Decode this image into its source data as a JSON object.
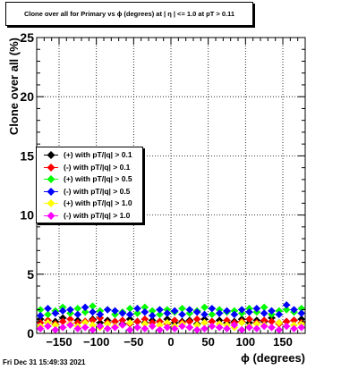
{
  "title": "Clone  over all for Primary vs ϕ (degrees) at |  η | <= 1.0 at pT > 0.11",
  "timestamp": "Fri Dec 31 15:49:33 2021",
  "chart_data": {
    "type": "scatter",
    "xlabel": "ϕ (degrees)",
    "ylabel": "Clone  over all (%)",
    "xlim": [
      -180,
      180
    ],
    "ylim": [
      0,
      25
    ],
    "x_ticks": [
      {
        "value": -150,
        "label": "−150"
      },
      {
        "value": -100,
        "label": "−100"
      },
      {
        "value": -50,
        "label": "−50"
      },
      {
        "value": 0,
        "label": "0"
      },
      {
        "value": 50,
        "label": "50"
      },
      {
        "value": 100,
        "label": "100"
      },
      {
        "value": 150,
        "label": "150"
      }
    ],
    "y_ticks": [
      {
        "value": 0,
        "label": "0"
      },
      {
        "value": 5,
        "label": "5"
      },
      {
        "value": 10,
        "label": "10"
      },
      {
        "value": 15,
        "label": "15"
      },
      {
        "value": 20,
        "label": "20"
      },
      {
        "value": 25,
        "label": "25"
      }
    ],
    "grid": true,
    "legend_position": "left-middle",
    "series": [
      {
        "name": "(+) with pT/|q| > 0.1",
        "color": "#000000",
        "x": [
          -175,
          -165,
          -155,
          -145,
          -135,
          -125,
          -115,
          -105,
          -95,
          -85,
          -75,
          -65,
          -55,
          -45,
          -35,
          -25,
          -15,
          -5,
          5,
          15,
          25,
          35,
          45,
          55,
          65,
          75,
          85,
          95,
          105,
          115,
          125,
          135,
          145,
          155,
          165,
          175
        ],
        "y": [
          1.2,
          0.9,
          1.0,
          1.3,
          0.8,
          1.1,
          1.0,
          1.2,
          0.9,
          1.1,
          1.0,
          0.8,
          1.2,
          1.0,
          0.9,
          1.1,
          1.0,
          1.2,
          0.9,
          1.0,
          1.1,
          0.8,
          1.2,
          1.0,
          1.1,
          0.9,
          1.0,
          1.2,
          0.9,
          1.1,
          1.0,
          1.3,
          0.9,
          1.0,
          1.1,
          1.2
        ]
      },
      {
        "name": "(-) with pT/|q| > 0.1",
        "color": "#ff0000",
        "x": [
          -175,
          -165,
          -155,
          -145,
          -135,
          -125,
          -115,
          -105,
          -95,
          -85,
          -75,
          -65,
          -55,
          -45,
          -35,
          -25,
          -15,
          -5,
          5,
          15,
          25,
          35,
          45,
          55,
          65,
          75,
          85,
          95,
          105,
          115,
          125,
          135,
          145,
          155,
          165,
          175
        ],
        "y": [
          0.9,
          1.1,
          0.8,
          1.0,
          1.2,
          0.9,
          1.0,
          1.1,
          1.3,
          0.9,
          1.0,
          1.1,
          0.8,
          1.0,
          1.2,
          0.9,
          1.0,
          0.8,
          1.1,
          0.9,
          1.0,
          1.2,
          0.9,
          1.0,
          0.8,
          1.1,
          0.9,
          1.0,
          1.2,
          0.9,
          1.1,
          1.0,
          0.8,
          1.0,
          1.1,
          0.9
        ]
      },
      {
        "name": "(+) with pT/|q| > 0.5",
        "color": "#00ff00",
        "x": [
          -175,
          -165,
          -155,
          -145,
          -135,
          -125,
          -115,
          -105,
          -95,
          -85,
          -75,
          -65,
          -55,
          -45,
          -35,
          -25,
          -15,
          -5,
          5,
          15,
          25,
          35,
          45,
          55,
          65,
          75,
          85,
          95,
          105,
          115,
          125,
          135,
          145,
          155,
          165,
          175
        ],
        "y": [
          2.0,
          1.6,
          1.9,
          2.2,
          1.7,
          2.1,
          1.8,
          2.3,
          1.9,
          2.0,
          1.6,
          1.8,
          2.1,
          1.7,
          2.2,
          1.9,
          1.6,
          2.0,
          1.8,
          2.1,
          1.7,
          1.9,
          2.2,
          1.6,
          2.0,
          1.8,
          1.9,
          1.7,
          2.1,
          1.8,
          2.2,
          1.6,
          1.9,
          2.0,
          1.8,
          2.1
        ]
      },
      {
        "name": "(-) with pT/|q| > 0.5",
        "color": "#0000ff",
        "x": [
          -175,
          -165,
          -155,
          -145,
          -135,
          -125,
          -115,
          -105,
          -95,
          -85,
          -75,
          -65,
          -55,
          -45,
          -35,
          -25,
          -15,
          -5,
          5,
          15,
          25,
          35,
          45,
          55,
          65,
          75,
          85,
          95,
          105,
          115,
          125,
          135,
          145,
          155,
          165,
          175
        ],
        "y": [
          1.5,
          2.1,
          1.7,
          1.9,
          2.0,
          1.6,
          2.2,
          1.8,
          1.6,
          2.0,
          1.9,
          1.7,
          1.6,
          2.1,
          1.8,
          1.5,
          2.0,
          1.7,
          1.9,
          1.6,
          2.0,
          1.8,
          1.6,
          2.1,
          1.7,
          1.9,
          1.6,
          2.0,
          1.8,
          2.1,
          1.7,
          1.9,
          1.6,
          2.4,
          2.0,
          1.7
        ]
      },
      {
        "name": "(+) with pT/|q| > 1.0",
        "color": "#ffff00",
        "x": [
          -175,
          -165,
          -155,
          -145,
          -135,
          -125,
          -115,
          -105,
          -95,
          -85,
          -75,
          -65,
          -55,
          -45,
          -35,
          -25,
          -15,
          -5,
          5,
          15,
          25,
          35,
          45,
          55,
          65,
          75,
          85,
          95,
          105,
          115,
          125,
          135,
          145,
          155,
          165,
          175
        ],
        "y": [
          0.6,
          0.9,
          0.7,
          0.5,
          0.8,
          0.6,
          0.9,
          0.7,
          0.5,
          0.8,
          0.6,
          0.7,
          0.9,
          0.5,
          0.8,
          0.6,
          0.7,
          0.9,
          0.6,
          0.8,
          0.5,
          0.7,
          0.9,
          0.6,
          0.8,
          0.7,
          0.5,
          0.9,
          0.6,
          0.8,
          0.7,
          0.5,
          0.9,
          0.6,
          0.7,
          0.8
        ]
      },
      {
        "name": "(-) with pT/|q| > 1.0",
        "color": "#ff00ff",
        "x": [
          -175,
          -165,
          -155,
          -145,
          -135,
          -125,
          -115,
          -105,
          -95,
          -85,
          -75,
          -65,
          -55,
          -45,
          -35,
          -25,
          -15,
          -5,
          5,
          15,
          25,
          35,
          45,
          55,
          65,
          75,
          85,
          95,
          105,
          115,
          125,
          135,
          145,
          155,
          165,
          175
        ],
        "y": [
          0.4,
          0.6,
          0.3,
          0.5,
          0.7,
          0.4,
          0.5,
          0.3,
          0.6,
          0.4,
          0.5,
          0.7,
          0.3,
          0.5,
          0.4,
          0.6,
          0.3,
          0.5,
          0.4,
          0.6,
          0.5,
          0.3,
          0.4,
          0.6,
          0.5,
          0.4,
          0.7,
          0.3,
          0.5,
          0.4,
          0.6,
          0.5,
          0.3,
          0.6,
          0.4,
          0.5
        ]
      }
    ]
  }
}
